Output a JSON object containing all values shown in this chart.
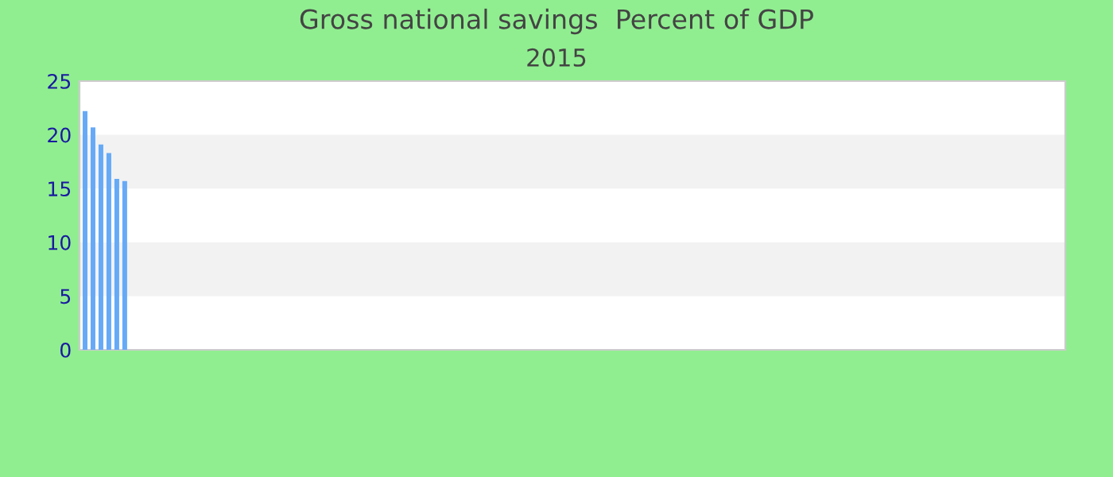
{
  "chart_data": {
    "type": "bar",
    "title": "Gross national savings  Percent of GDP",
    "subtitle": "2015",
    "categories": [
      null,
      null,
      null,
      null,
      null,
      null,
      null,
      null,
      null,
      null,
      null,
      null,
      null,
      null,
      null,
      null,
      null,
      null,
      null,
      null,
      null,
      null,
      null,
      null,
      null,
      null,
      null,
      null,
      null,
      null,
      null,
      null,
      null,
      null,
      null,
      null,
      null,
      null,
      null,
      null,
      null,
      null,
      null,
      null,
      null,
      null,
      null,
      null,
      null,
      null,
      null,
      null,
      null,
      null,
      null,
      null,
      null,
      null,
      null,
      null,
      null,
      null,
      null,
      null,
      null,
      null,
      null,
      null,
      null,
      null,
      null,
      null,
      null,
      null,
      null,
      null,
      null,
      null,
      null,
      null,
      null,
      null,
      null,
      null,
      null,
      null,
      null,
      null,
      null,
      null,
      null,
      null,
      null,
      null,
      null,
      null,
      null,
      null,
      null,
      null,
      null,
      null,
      null,
      null,
      null,
      null,
      null,
      null,
      null,
      null,
      null,
      null,
      null,
      null,
      null,
      null,
      null,
      null,
      null,
      null,
      null,
      null,
      null,
      null
    ],
    "values": [
      22.2,
      20.7,
      19.1,
      18.3,
      15.9,
      15.7,
      null,
      null,
      null,
      null,
      null,
      null,
      null,
      null,
      null,
      null,
      null,
      null,
      null,
      null,
      null,
      null,
      null,
      null,
      null,
      null,
      null,
      null,
      null,
      null,
      null,
      null,
      null,
      null,
      null,
      null,
      null,
      null,
      null,
      null,
      null,
      null,
      null,
      null,
      null,
      null,
      null,
      null,
      null,
      null,
      null,
      null,
      null,
      null,
      null,
      null,
      null,
      null,
      null,
      null,
      null,
      null,
      null,
      null,
      null,
      null,
      null,
      null,
      null,
      null,
      null,
      null,
      null,
      null,
      null,
      null,
      null,
      null,
      null,
      null,
      null,
      null,
      null,
      null,
      null,
      null,
      null,
      null,
      null,
      null,
      null,
      null,
      null,
      null,
      null,
      null,
      null,
      null,
      null,
      null,
      null,
      null,
      null,
      null,
      null,
      null,
      null,
      null,
      null,
      null,
      null,
      null,
      null,
      null,
      null,
      null,
      null,
      null,
      null,
      null,
      null,
      null,
      null,
      null
    ],
    "color": "#66aaf7",
    "ylim": [
      0,
      25
    ],
    "yticks": [
      0,
      5,
      10,
      15,
      20,
      25
    ],
    "bands": [
      {
        "axis": "y",
        "from": 5,
        "to": 10,
        "color": "#f2f2f2"
      },
      {
        "axis": "y",
        "from": 15,
        "to": 20,
        "color": "#f2f2f2"
      }
    ],
    "tick_labels": "y",
    "legend": false
  }
}
